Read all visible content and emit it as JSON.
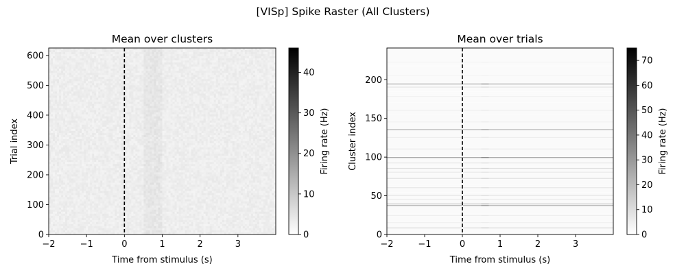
{
  "figure": {
    "suptitle": "[VISp] Spike Raster (All Clusters)"
  },
  "chart_data": [
    {
      "type": "heatmap",
      "title": "Mean over clusters",
      "xlabel": "Time from stimulus (s)",
      "ylabel": "Trial index",
      "xlim": [
        -2,
        4
      ],
      "ylim": [
        0,
        625
      ],
      "xticks": [
        -2,
        -1,
        0,
        1,
        2,
        3
      ],
      "xtick_labels": [
        "−2",
        "−1",
        "0",
        "1",
        "2",
        "3"
      ],
      "yticks": [
        0,
        100,
        200,
        300,
        400,
        500,
        600
      ],
      "ytick_labels": [
        "0",
        "100",
        "200",
        "300",
        "400",
        "500",
        "600"
      ],
      "stimulus_line_x": 0,
      "colormap": "gray_r",
      "colorbar": {
        "label": "Firing rate (Hz)",
        "range": [
          0,
          46
        ],
        "ticks": [
          0,
          10,
          20,
          30,
          40
        ],
        "tick_labels": [
          "0",
          "10",
          "20",
          "30",
          "40"
        ]
      },
      "background_rate_hz": 2,
      "response_band_x": [
        0.5,
        1.0
      ]
    },
    {
      "type": "heatmap",
      "title": "Mean over trials",
      "xlabel": "Time from stimulus (s)",
      "ylabel": "Cluster index",
      "xlim": [
        -2,
        4
      ],
      "ylim": [
        0,
        241
      ],
      "xticks": [
        -2,
        -1,
        0,
        1,
        2,
        3
      ],
      "xtick_labels": [
        "−2",
        "−1",
        "0",
        "1",
        "2",
        "3"
      ],
      "yticks": [
        0,
        50,
        100,
        150,
        200
      ],
      "ytick_labels": [
        "0",
        "50",
        "100",
        "150",
        "200"
      ],
      "stimulus_line_x": 0,
      "colormap": "gray_r",
      "colorbar": {
        "label": "Firing rate (Hz)",
        "range": [
          0,
          75
        ],
        "ticks": [
          0,
          10,
          20,
          30,
          40,
          50,
          60,
          70
        ],
        "tick_labels": [
          "0",
          "10",
          "20",
          "30",
          "40",
          "50",
          "60",
          "70"
        ]
      },
      "bright_rows": [
        {
          "cluster": 8,
          "rate": 12
        },
        {
          "cluster": 15,
          "rate": 4
        },
        {
          "cluster": 24,
          "rate": 5
        },
        {
          "cluster": 37,
          "rate": 22
        },
        {
          "cluster": 39,
          "rate": 18
        },
        {
          "cluster": 45,
          "rate": 6
        },
        {
          "cluster": 50,
          "rate": 8
        },
        {
          "cluster": 60,
          "rate": 7
        },
        {
          "cluster": 72,
          "rate": 9
        },
        {
          "cluster": 80,
          "rate": 6
        },
        {
          "cluster": 85,
          "rate": 10
        },
        {
          "cluster": 92,
          "rate": 7
        },
        {
          "cluster": 99,
          "rate": 28
        },
        {
          "cluster": 110,
          "rate": 6
        },
        {
          "cluster": 125,
          "rate": 5
        },
        {
          "cluster": 135,
          "rate": 24
        },
        {
          "cluster": 145,
          "rate": 4
        },
        {
          "cluster": 160,
          "rate": 5
        },
        {
          "cluster": 178,
          "rate": 4
        },
        {
          "cluster": 190,
          "rate": 8
        },
        {
          "cluster": 194,
          "rate": 26
        },
        {
          "cluster": 205,
          "rate": 3
        },
        {
          "cluster": 222,
          "rate": 3
        }
      ],
      "response_band_x": [
        0.5,
        0.7
      ]
    }
  ]
}
